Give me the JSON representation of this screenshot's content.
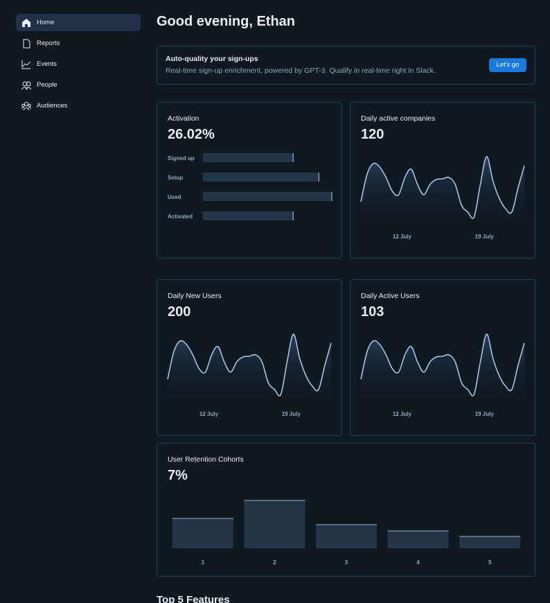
{
  "sidebar": {
    "items": [
      "Home",
      "Reports",
      "Events",
      "People",
      "Audiences"
    ]
  },
  "header": {
    "title": "Good evening, Ethan"
  },
  "banner": {
    "title": "Auto-quality your sign-ups",
    "text": "Real-time sign-up enrichment, powered by GPT-3. Qualify in real-time right in Slack.",
    "button": "Let's go"
  },
  "cards": [
    {
      "title": "Activation",
      "value": "26.02%",
      "chart": {
        "type": "hbar",
        "categories": [
          "Signed up",
          "Setup",
          "Used",
          "Activated"
        ],
        "values": [
          70,
          90,
          100,
          70
        ],
        "xlim": [
          0,
          100
        ]
      }
    },
    {
      "title": "Daily active companies",
      "value": 120,
      "chart": {
        "type": "line",
        "values": [
          30,
          70,
          85,
          80,
          65,
          45,
          40,
          65,
          77,
          55,
          40,
          55,
          62,
          63,
          65,
          55,
          25,
          15,
          8,
          55,
          95,
          60,
          35,
          20,
          15,
          50,
          82
        ],
        "ylim": [
          0,
          100
        ],
        "xlim": [
          8.5,
          22.4
        ],
        "xticks": [
          {
            "value": 12,
            "label": "12 July"
          },
          {
            "value": 19,
            "label": "19 July"
          }
        ]
      }
    },
    {
      "title": "Daily New Users",
      "value": 200,
      "chart": {
        "type": "line",
        "values": [
          30,
          70,
          85,
          80,
          65,
          45,
          40,
          65,
          77,
          55,
          40,
          55,
          62,
          63,
          65,
          55,
          25,
          15,
          8,
          55,
          95,
          60,
          35,
          20,
          15,
          50,
          82
        ],
        "ylim": [
          0,
          100
        ],
        "xlim": [
          8.5,
          22.4
        ],
        "xticks": [
          {
            "value": 12,
            "label": "12 July"
          },
          {
            "value": 19,
            "label": "19 July"
          }
        ]
      }
    },
    {
      "title": "Daily Active Users",
      "value": 103,
      "chart": {
        "type": "line",
        "values": [
          30,
          70,
          85,
          80,
          65,
          45,
          40,
          65,
          77,
          55,
          40,
          55,
          62,
          63,
          65,
          55,
          25,
          15,
          8,
          55,
          95,
          60,
          35,
          20,
          15,
          50,
          82
        ],
        "ylim": [
          0,
          100
        ],
        "xlim": [
          8.5,
          22.4
        ],
        "xticks": [
          {
            "value": 12,
            "label": "12 July"
          },
          {
            "value": 19,
            "label": "19 July"
          }
        ]
      }
    },
    {
      "title": "User Retention Cohorts",
      "value": "7%",
      "chart": {
        "type": "bar",
        "categories": [
          "1",
          "2",
          "3",
          "4",
          "5"
        ],
        "values": [
          43,
          69,
          34,
          25,
          17
        ],
        "ylim": [
          0,
          75
        ]
      }
    }
  ],
  "section": {
    "title": "Top 5 Features"
  }
}
